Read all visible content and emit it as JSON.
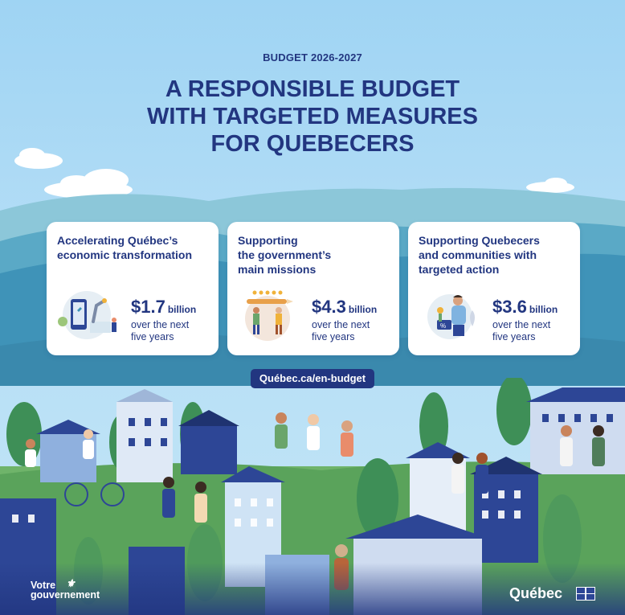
{
  "header": {
    "eyebrow": "BUDGET 2026-2027",
    "title_lines": [
      "A RESPONSIBLE BUDGET",
      "WITH TARGETED MEASURES",
      "FOR QUEBECERS"
    ]
  },
  "cards": [
    {
      "title_lines": [
        "Accelerating Québec’s",
        "economic transformation"
      ],
      "amount": "$1.7",
      "unit": "billion",
      "period_lines": [
        "over the next",
        "five years"
      ],
      "icon": "robot-arm-phone-icon"
    },
    {
      "title_lines": [
        "Supporting",
        "the government’s",
        "main missions"
      ],
      "amount": "$4.3",
      "unit": "billion",
      "period_lines": [
        "over the next",
        "five years"
      ],
      "icon": "people-pencil-stars-icon"
    },
    {
      "title_lines": [
        "Supporting Quebecers",
        "and communities with",
        "targeted action"
      ],
      "amount": "$3.6",
      "unit": "billion",
      "period_lines": [
        "over the next",
        "five years"
      ],
      "icon": "person-with-plant-icon"
    }
  ],
  "link": {
    "label": "Québec.ca/en-budget"
  },
  "footer": {
    "left_logo_lines": [
      "Votre",
      "gouvernement"
    ],
    "right_logo": "Québec"
  },
  "colors": {
    "navy": "#223680",
    "sky": "#9fd4f3",
    "hill": "#3f93b8",
    "white": "#ffffff"
  }
}
